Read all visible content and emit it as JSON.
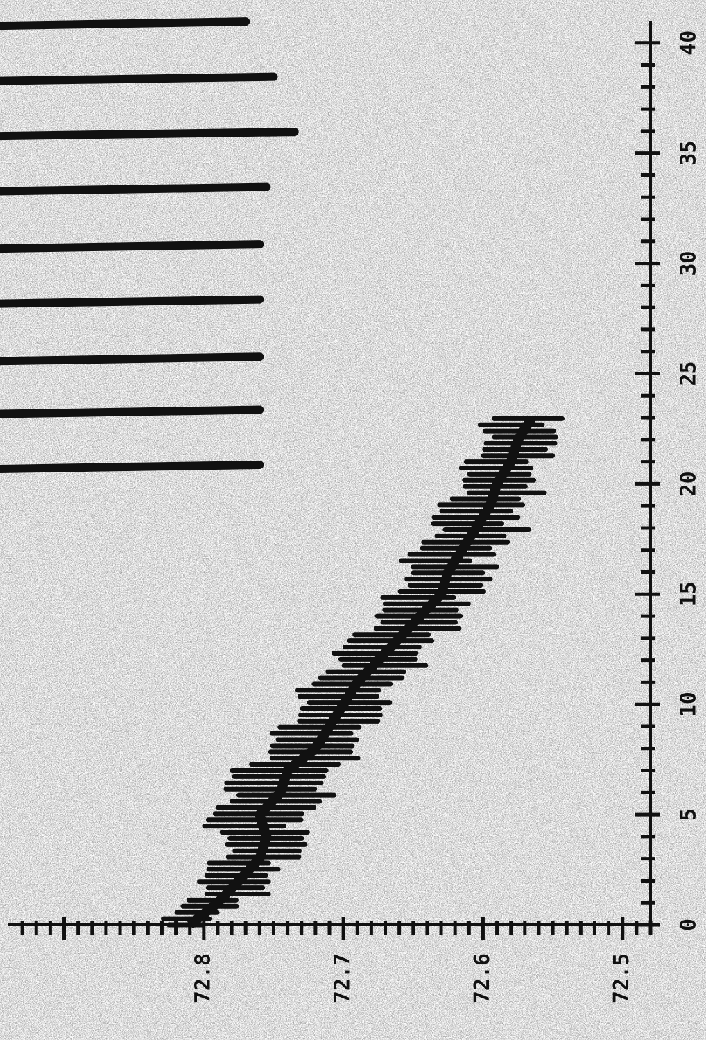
{
  "chart_data": {
    "type": "line",
    "title": "",
    "xlabel": "",
    "ylabel": "",
    "x_axis": {
      "ticks": [
        0,
        5,
        10,
        15,
        20,
        25,
        30,
        35,
        40
      ],
      "tick_labels": [
        "0",
        "5",
        "10",
        "15",
        "20",
        "25",
        "30",
        "35",
        "40"
      ],
      "range": [
        0,
        41
      ]
    },
    "y_axis": {
      "ticks": [
        72.8,
        72.7,
        72.6,
        72.5
      ],
      "tick_labels": [
        "72.8",
        "72.7",
        "72.6",
        "72.5"
      ],
      "range": [
        72.48,
        72.94
      ]
    },
    "series": [
      {
        "x": [
          0,
          1,
          2,
          3,
          4,
          5,
          6,
          7,
          8,
          9,
          10,
          11,
          12,
          13,
          14,
          15,
          16,
          17,
          18,
          19,
          20,
          21,
          22,
          23
        ],
        "y": [
          72.81,
          72.79,
          72.775,
          72.76,
          72.755,
          72.76,
          72.745,
          72.74,
          72.72,
          72.71,
          72.7,
          72.69,
          72.675,
          72.66,
          72.645,
          72.63,
          72.625,
          72.615,
          72.605,
          72.595,
          72.59,
          72.58,
          72.575,
          72.565
        ],
        "envelope_halfwidth": [
          0.015,
          0.02,
          0.025,
          0.025,
          0.03,
          0.035,
          0.035,
          0.035,
          0.03,
          0.03,
          0.03,
          0.03,
          0.03,
          0.03,
          0.03,
          0.03,
          0.03,
          0.03,
          0.03,
          0.03,
          0.025,
          0.025,
          0.025,
          0.025
        ]
      }
    ],
    "reference_lines": [
      {
        "x_start": 20.8,
        "y_end": 72.76
      },
      {
        "x_start": 23.3,
        "y_end": 72.76
      },
      {
        "x_start": 25.7,
        "y_end": 72.76
      },
      {
        "x_start": 28.3,
        "y_end": 72.76
      },
      {
        "x_start": 30.8,
        "y_end": 72.76
      },
      {
        "x_start": 33.4,
        "y_end": 72.755
      },
      {
        "x_start": 35.9,
        "y_end": 72.735
      },
      {
        "x_start": 38.4,
        "y_end": 72.75
      },
      {
        "x_start": 40.9,
        "y_end": 72.77
      }
    ],
    "grid": false,
    "colors": {
      "ink": "#111111",
      "paper": "#ffffff",
      "speckle": "#8a8a8a"
    }
  }
}
